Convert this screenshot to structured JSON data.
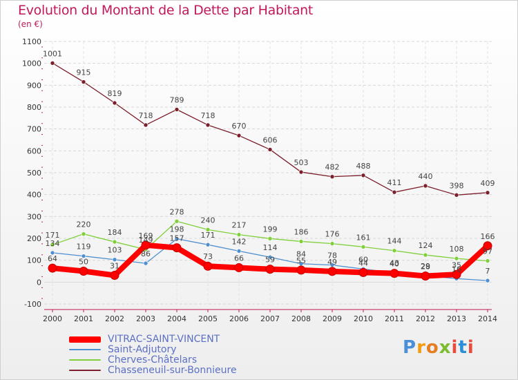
{
  "title": "Evolution du Montant de la Dette par Habitant",
  "subtitle": "(en €)",
  "logo": "Proxiti",
  "chart_data": {
    "type": "line",
    "x": [
      "2000",
      "2001",
      "2002",
      "2003",
      "2004",
      "2005",
      "2006",
      "2007",
      "2008",
      "2009",
      "2010",
      "2011",
      "2012",
      "2013",
      "2014"
    ],
    "ylim": [
      -100,
      1100
    ],
    "yticks": [
      -100,
      0,
      100,
      200,
      300,
      400,
      500,
      600,
      700,
      800,
      900,
      1000,
      1100
    ],
    "grid": true,
    "legend_position": "bottom-left",
    "series": [
      {
        "name": "VITRAC-SAINT-VINCENT",
        "color": "#ff0000",
        "values": [
          64,
          50,
          31,
          169,
          157,
          73,
          66,
          59,
          55,
          49,
          44,
          40,
          28,
          35,
          166
        ]
      },
      {
        "name": "Saint-Adjutory",
        "color": "#4f8fd0",
        "values": [
          134,
          119,
          103,
          86,
          198,
          171,
          142,
          114,
          84,
          78,
          60,
          43,
          29,
          16,
          7
        ]
      },
      {
        "name": "Cherves-Châtelars",
        "color": "#7fcf3a",
        "values": [
          171,
          220,
          184,
          149,
          278,
          240,
          217,
          199,
          186,
          176,
          161,
          144,
          124,
          108,
          97
        ]
      },
      {
        "name": "Chasseneuil-sur-Bonnieure",
        "color": "#7a1f2b",
        "values": [
          1001,
          915,
          819,
          718,
          789,
          718,
          670,
          606,
          503,
          482,
          488,
          411,
          440,
          398,
          409
        ]
      }
    ]
  }
}
